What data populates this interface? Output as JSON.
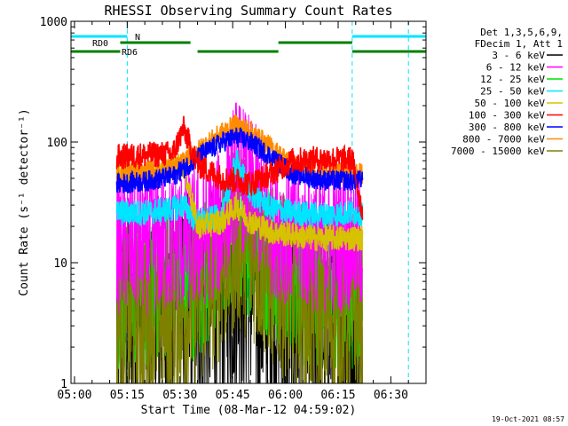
{
  "chart_data": {
    "type": "line",
    "title": "RHESSI Observing Summary Count Rates",
    "xlabel": "Start Time (08-Mar-12 04:59:02)",
    "ylabel": "Count Rate (s⁻¹ detector⁻¹)",
    "y_scale": "log",
    "ylim": [
      1,
      1000
    ],
    "xlim": [
      "04:59",
      "06:40"
    ],
    "x_ticks": [
      "05:00",
      "05:15",
      "05:30",
      "05:45",
      "06:00",
      "06:15",
      "06:30"
    ],
    "y_ticks": [
      "1",
      "10",
      "100",
      "1000"
    ],
    "legend_header": [
      "Det 1,3,5,6,9,",
      "FDecim 1, Att 1"
    ],
    "legend_position": "top-right",
    "timestamp": "19-Oct-2021 08:57",
    "data_start": "05:12",
    "data_end": "06:22",
    "flags": [
      {
        "name": "N",
        "color": "#00e5ff",
        "segments": [
          [
            "04:59",
            "05:15"
          ],
          [
            "06:19",
            "06:40"
          ]
        ]
      },
      {
        "name": "RD0",
        "color": "#007f00",
        "segments": [
          [
            "05:13",
            "05:33"
          ],
          [
            "05:58",
            "06:19"
          ]
        ]
      },
      {
        "name": "RD6",
        "color": "#007f00",
        "segments": [
          [
            "04:59",
            "05:13"
          ],
          [
            "05:35",
            "05:58"
          ],
          [
            "06:19",
            "06:40"
          ]
        ]
      }
    ],
    "vlines": [
      {
        "time": "05:15",
        "color": "#00e5ff"
      },
      {
        "time": "06:19",
        "color": "#00e5ff"
      },
      {
        "time": "06:35",
        "color": "#00e5ff"
      }
    ],
    "x_knots": [
      "05:12",
      "05:20",
      "05:28",
      "05:31",
      "05:35",
      "05:42",
      "05:46",
      "05:50",
      "05:56",
      "06:02",
      "06:08",
      "06:12",
      "06:19",
      "06:22"
    ],
    "series": [
      {
        "name": "3 - 6 keV",
        "color": "#000000",
        "noise": 0.45,
        "values": [
          3,
          3.5,
          3.5,
          4,
          4,
          5,
          8,
          6,
          4,
          3.5,
          3,
          3,
          3,
          2.5
        ]
      },
      {
        "name": "6 - 12 keV",
        "color": "#ff00ff",
        "noise": 0.28,
        "values": [
          15,
          15,
          15,
          16,
          16,
          22,
          60,
          40,
          22,
          17,
          16,
          15,
          16,
          15
        ]
      },
      {
        "name": "12 - 25 keV",
        "color": "#00e000",
        "noise": 0.3,
        "values": [
          6,
          6,
          7,
          7,
          7,
          10,
          25,
          15,
          10,
          7,
          6,
          6,
          6,
          5
        ]
      },
      {
        "name": "25 - 50 keV",
        "color": "#00e5ff",
        "noise": 0.05,
        "values": [
          26,
          26,
          28,
          30,
          22,
          24,
          70,
          38,
          28,
          26,
          25,
          25,
          26,
          26
        ]
      },
      {
        "name": "50 - 100 keV",
        "color": "#d6c200",
        "noise": 0.05,
        "values": [
          55,
          55,
          60,
          65,
          20,
          22,
          30,
          22,
          18,
          17,
          16,
          16,
          16,
          16
        ]
      },
      {
        "name": "100 - 300 keV",
        "color": "#ff0000",
        "noise": 0.05,
        "values": [
          75,
          78,
          80,
          130,
          65,
          50,
          48,
          45,
          55,
          70,
          72,
          72,
          72,
          25
        ]
      },
      {
        "name": "300 - 800 keV",
        "color": "#0000ff",
        "noise": 0.04,
        "values": [
          45,
          47,
          52,
          60,
          75,
          100,
          110,
          100,
          75,
          55,
          50,
          48,
          48,
          48
        ]
      },
      {
        "name": "800 - 7000 keV",
        "color": "#ff8c00",
        "noise": 0.04,
        "values": [
          55,
          57,
          60,
          68,
          85,
          120,
          140,
          125,
          90,
          65,
          58,
          55,
          55,
          55
        ]
      },
      {
        "name": "7000 - 15000 keV",
        "color": "#7f7f00",
        "noise": 0.35,
        "values": [
          3.5,
          3.5,
          4,
          4,
          5,
          9,
          16,
          13,
          8,
          5,
          4,
          3.5,
          3.5,
          3.5
        ]
      }
    ]
  }
}
